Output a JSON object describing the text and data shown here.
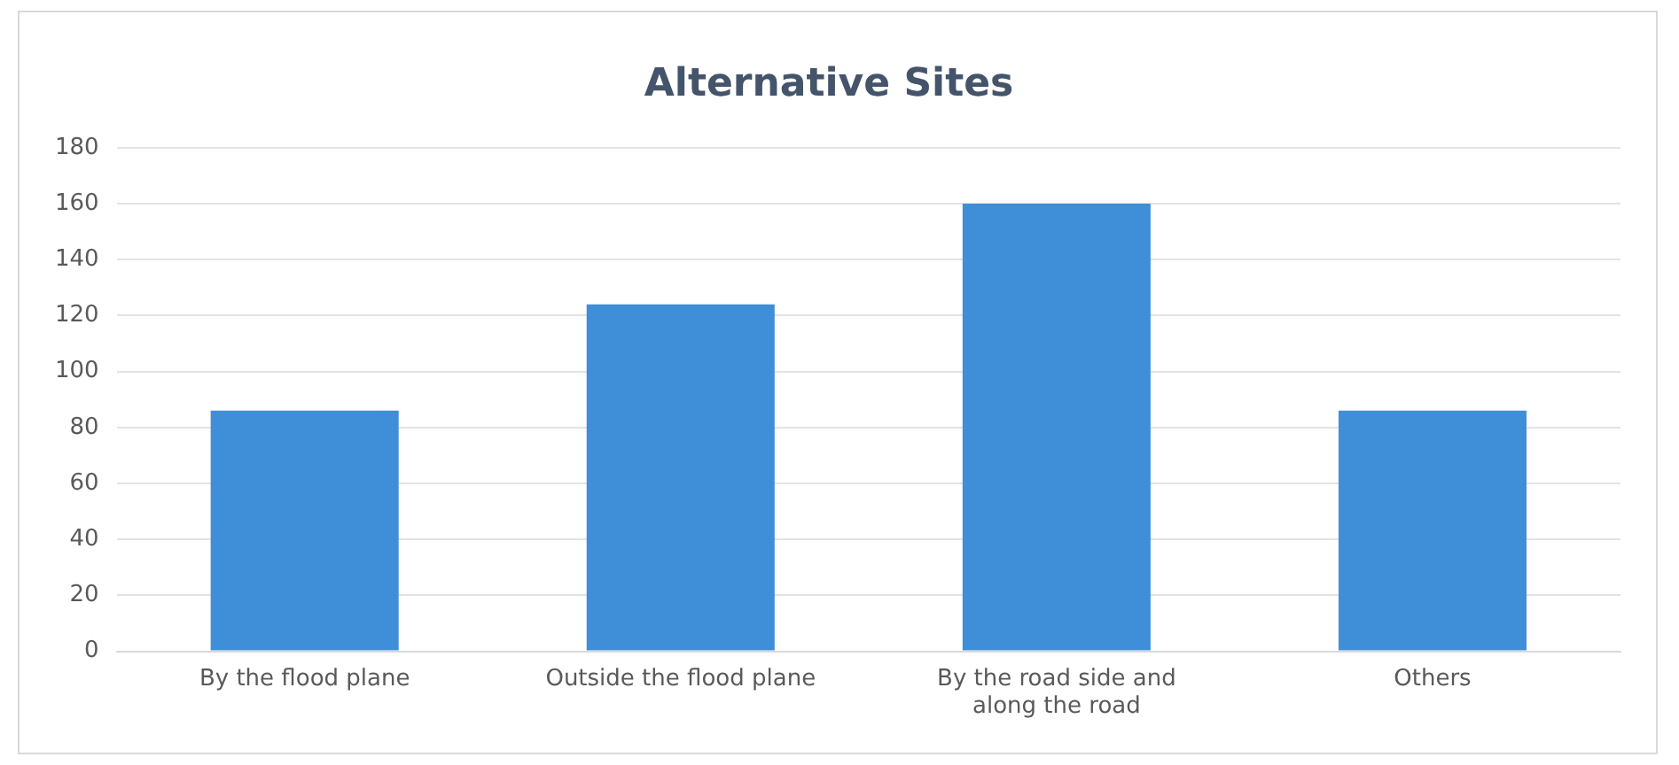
{
  "chart_data": {
    "type": "bar",
    "title": "Alternative Sites",
    "categories": [
      "By the flood plane",
      "Outside the flood plane",
      "By the road side and along the road",
      "Others"
    ],
    "values": [
      86,
      124,
      160,
      86
    ],
    "color": "#3f8ed8",
    "ylim": [
      0,
      180
    ],
    "yticks": [
      0,
      20,
      40,
      60,
      80,
      100,
      120,
      140,
      160,
      180
    ],
    "grid": "y",
    "legend": false
  }
}
